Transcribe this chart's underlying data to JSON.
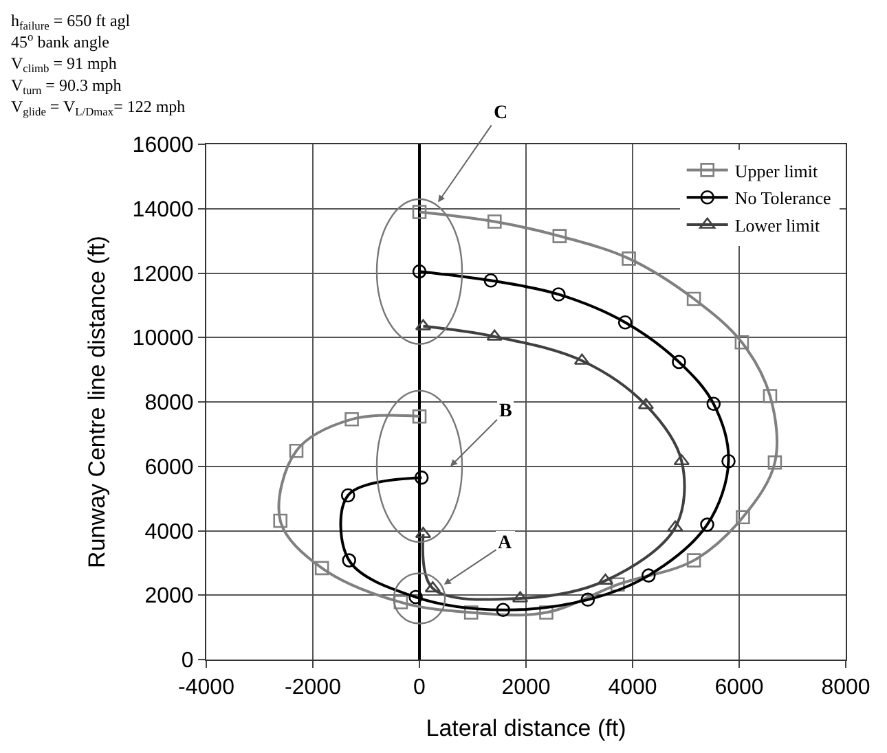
{
  "chart_data": {
    "type": "line",
    "xlabel": "Lateral distance (ft)",
    "ylabel": "Runway Centre line distance (ft)",
    "xlim": [
      -4000,
      8000
    ],
    "xticks": [
      -4000,
      -2000,
      0,
      2000,
      4000,
      6000,
      8000
    ],
    "ylim": [
      0,
      16000
    ],
    "yticks": [
      0,
      2000,
      4000,
      6000,
      8000,
      10000,
      12000,
      14000,
      16000
    ],
    "grid": true,
    "legend": "top right",
    "series": [
      {
        "name": "Upper limit",
        "color": "#808080",
        "marker": "square",
        "x": [
          0,
          1410,
          2630,
          3930,
          5150,
          6050,
          6580,
          6670,
          6070,
          5150,
          3720,
          2380,
          970,
          -350,
          -1830,
          -2610,
          -2310,
          -1270,
          0
        ],
        "values": [
          13900,
          13600,
          13150,
          12450,
          11200,
          9850,
          8180,
          6120,
          4420,
          3080,
          2330,
          1460,
          1460,
          1780,
          2840,
          4310,
          6480,
          7460,
          7550
        ]
      },
      {
        "name": "No Tolerance",
        "color": "#000000",
        "marker": "circle",
        "x": [
          0,
          1340,
          2610,
          3860,
          4870,
          5520,
          5800,
          5400,
          4300,
          3160,
          1570,
          -70,
          -1320,
          -1340,
          40
        ],
        "values": [
          12050,
          11770,
          11340,
          10470,
          9240,
          7940,
          6160,
          4190,
          2610,
          1860,
          1540,
          1940,
          3080,
          5100,
          5650
        ]
      },
      {
        "name": "Lower limit",
        "color": "#404040",
        "marker": "triangle",
        "x": [
          70,
          1410,
          3050,
          4250,
          4920,
          4800,
          3490,
          1890,
          250,
          70
        ],
        "values": [
          10350,
          10030,
          9280,
          7900,
          6160,
          4100,
          2450,
          1900,
          2210,
          3900
        ]
      }
    ],
    "annotations": [
      "h$_{failure}$ = 650 ft agl",
      "45$^{o}$ bank angle",
      "V$_{climb}$ = 91 mph",
      "V$_{turn}$ = 90.3 mph",
      "V$_{glide}$ = V$_{L/Dmax}$= 122 mph",
      "C",
      "B",
      "A"
    ]
  }
}
